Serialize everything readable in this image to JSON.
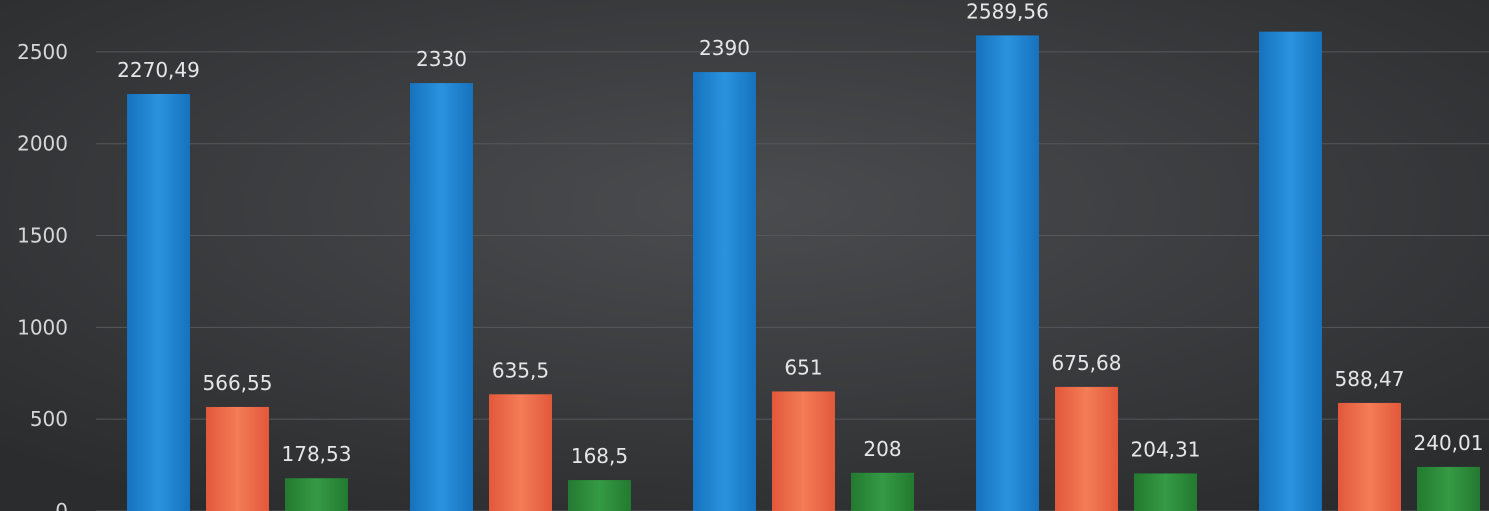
{
  "chart_data": {
    "type": "bar",
    "title": "",
    "xlabel": "",
    "ylabel": "",
    "ylim": [
      0,
      2600
    ],
    "yticks": [
      0,
      500,
      1000,
      1500,
      2000,
      2500
    ],
    "categories": [
      "",
      "",
      "",
      "",
      ""
    ],
    "series": [
      {
        "color": "#1f86d4",
        "values": [
          2270.49,
          2330,
          2390,
          2589.56,
          2610
        ],
        "labels": [
          "2270,49",
          "2330",
          "2390",
          "2589,56",
          ""
        ]
      },
      {
        "color": "#ee6b47",
        "values": [
          566.55,
          635.5,
          651,
          675.68,
          588.47
        ],
        "labels": [
          "566,55",
          "635,5",
          "651",
          "675,68",
          "588,47"
        ]
      },
      {
        "color": "#2e8a3a",
        "values": [
          178.53,
          168.5,
          208,
          204.31,
          240.01
        ],
        "labels": [
          "178,53",
          "168,5",
          "208",
          "204,31",
          "240,01"
        ]
      }
    ],
    "grid": true,
    "legend": "none"
  }
}
